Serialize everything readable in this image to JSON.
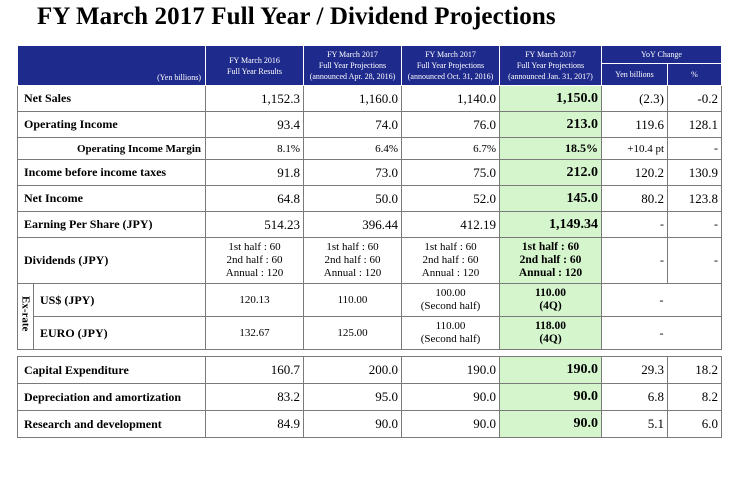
{
  "title": "FY March 2017 Full Year / Dividend Projections",
  "header": {
    "unit": "(Yen billions)",
    "col1": [
      "FY March 2016",
      "Full Year Results"
    ],
    "col2": [
      "FY March 2017",
      "Full Year Projections",
      "(announced Apr. 28, 2016)"
    ],
    "col3": [
      "FY March 2017",
      "Full Year Projections",
      "(announced Oct. 31, 2016)"
    ],
    "col4": [
      "FY March 2017",
      "Full Year Projections",
      "(announced Jan. 31, 2017)"
    ],
    "yoy": "YoY Change",
    "yoy_yen": "Yen billions",
    "yoy_pct": "%"
  },
  "rows": {
    "net_sales": {
      "label": "Net Sales",
      "v": [
        "1,152.3",
        "1,160.0",
        "1,140.0",
        "1,150.0",
        "(2.3)",
        "-0.2"
      ]
    },
    "op_income": {
      "label": "Operating Income",
      "v": [
        "93.4",
        "74.0",
        "76.0",
        "213.0",
        "119.6",
        "128.1"
      ]
    },
    "op_margin": {
      "label": "Operating Income Margin",
      "v": [
        "8.1%",
        "6.4%",
        "6.7%",
        "18.5%",
        "+10.4 pt",
        "-"
      ]
    },
    "pretax": {
      "label": "Income before income taxes",
      "v": [
        "91.8",
        "73.0",
        "75.0",
        "212.0",
        "120.2",
        "130.9"
      ]
    },
    "net_income": {
      "label": "Net Income",
      "v": [
        "64.8",
        "50.0",
        "52.0",
        "145.0",
        "80.2",
        "123.8"
      ]
    },
    "eps": {
      "label": "Earning Per Share (JPY)",
      "v": [
        "514.23",
        "396.44",
        "412.19",
        "1,149.34",
        "-",
        "-"
      ]
    },
    "dividends": {
      "label": "Dividends (JPY)",
      "c1": [
        "1st half : 60",
        "2nd half : 60",
        "Annual : 120"
      ],
      "c2": [
        "1st half : 60",
        "2nd half : 60",
        "Annual : 120"
      ],
      "c3": [
        "1st half : 60",
        "2nd half : 60",
        "Annual : 120"
      ],
      "c4": [
        "1st half : 60",
        "2nd half : 60",
        "Annual : 120"
      ],
      "yoy": [
        "-",
        "-"
      ]
    },
    "exrate_label": "Ex-rate",
    "usd": {
      "label": "US$ (JPY)",
      "v": [
        "120.13",
        "110.00"
      ],
      "c3": [
        "100.00",
        "(Second half)"
      ],
      "c4": [
        "110.00",
        "(4Q)"
      ],
      "yoy": "-"
    },
    "euro": {
      "label": "EURO (JPY)",
      "v": [
        "132.67",
        "125.00"
      ],
      "c3": [
        "110.00",
        "(Second half)"
      ],
      "c4": [
        "118.00",
        "(4Q)"
      ],
      "yoy": "-"
    },
    "capex": {
      "label": "Capital Expenditure",
      "v": [
        "160.7",
        "200.0",
        "190.0",
        "190.0",
        "29.3",
        "18.2"
      ]
    },
    "dep": {
      "label": "Depreciation and amortization",
      "v": [
        "83.2",
        "95.0",
        "90.0",
        "90.0",
        "6.8",
        "8.2"
      ]
    },
    "rnd": {
      "label": "Research and development",
      "v": [
        "84.9",
        "90.0",
        "90.0",
        "90.0",
        "5.1",
        "6.0"
      ]
    }
  }
}
